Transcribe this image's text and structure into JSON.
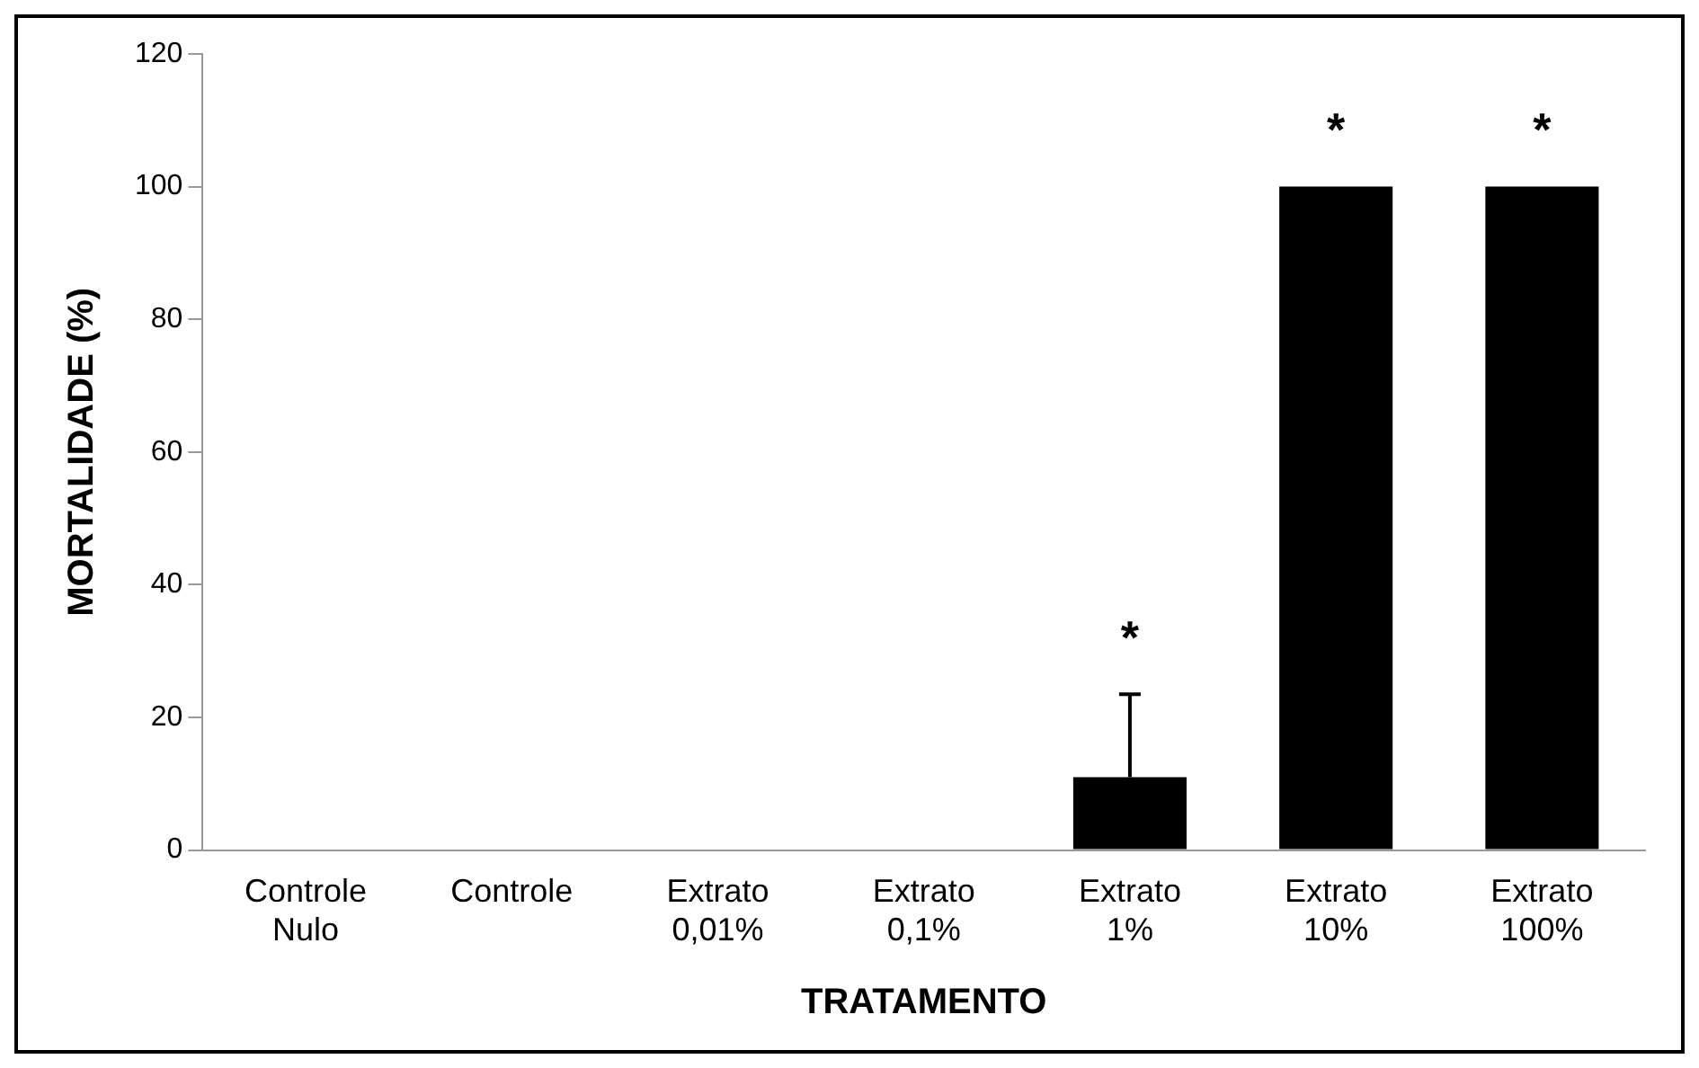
{
  "chart_data": {
    "type": "bar",
    "xlabel": "TRATAMENTO",
    "ylabel": "MORTALIDADE (%)",
    "categories": [
      "Controle\nNulo",
      "Controle",
      "Extrato\n0,01%",
      "Extrato\n0,1%",
      "Extrato\n1%",
      "Extrato\n10%",
      "Extrato\n100%"
    ],
    "values": [
      0,
      0,
      0,
      0,
      11,
      100,
      100
    ],
    "color": "#000000",
    "errors": [
      null,
      null,
      null,
      null,
      [
        11,
        23.5
      ],
      null,
      null
    ],
    "ylim": [
      0,
      120
    ],
    "yticks": [
      0,
      20,
      40,
      60,
      80,
      100,
      120
    ],
    "grid": false,
    "legend": false,
    "annotations": [
      {
        "text": "*",
        "x": "Extrato\n1%",
        "y": 23.5
      },
      {
        "text": "*",
        "x": "Extrato\n10%",
        "y": 100
      },
      {
        "text": "*",
        "x": "Extrato\n100%",
        "y": 100
      }
    ]
  }
}
